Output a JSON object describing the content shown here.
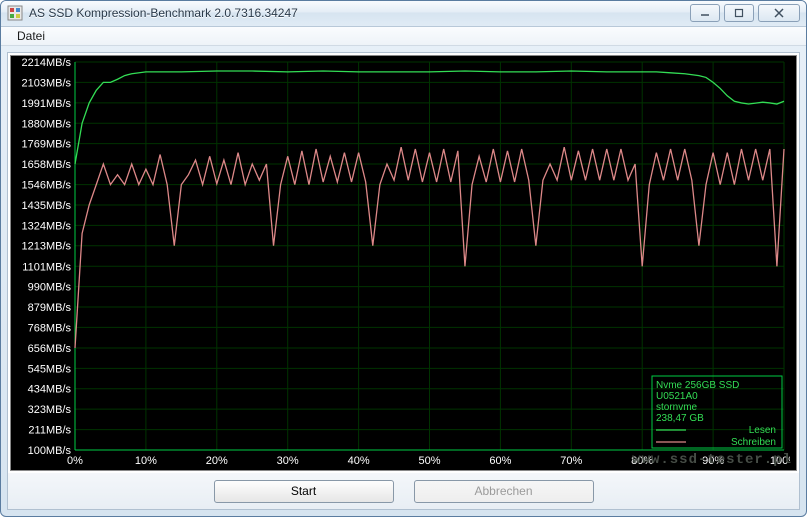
{
  "window": {
    "title": "AS SSD Kompression-Benchmark 2.0.7316.34247"
  },
  "menu": {
    "file": "Datei"
  },
  "buttons": {
    "start": "Start",
    "cancel": "Abbrechen"
  },
  "watermark": "www.ssd-tester.pl",
  "chart": {
    "background_color": "#000000",
    "grid_color": "#003300",
    "axis_color": "#00cc44",
    "read_color": "#33dd55",
    "write_color": "#dd8888",
    "info_text_color": "#33dd55",
    "y_axis": {
      "min": 100,
      "max": 2214,
      "ticks": [
        100,
        211,
        323,
        434,
        545,
        656,
        768,
        879,
        990,
        1101,
        1213,
        1324,
        1435,
        1546,
        1658,
        1769,
        1880,
        1991,
        2103,
        2214
      ],
      "unit": "MB/s",
      "label_fontsize": 11
    },
    "x_axis": {
      "min": 0,
      "max": 100,
      "ticks": [
        0,
        10,
        20,
        30,
        40,
        50,
        60,
        70,
        80,
        90,
        100
      ],
      "unit": "%",
      "label_fontsize": 11
    },
    "info_box": {
      "lines": [
        "Nvme 256GB SSD",
        "U0521A0",
        "stornvme",
        "238,47 GB"
      ]
    },
    "legend": {
      "read": "Lesen",
      "write": "Schreiben"
    },
    "read_series": {
      "x": [
        0,
        1,
        2,
        3,
        4,
        5,
        6,
        7,
        8,
        10,
        12,
        15,
        20,
        25,
        30,
        35,
        40,
        45,
        50,
        55,
        60,
        65,
        70,
        75,
        80,
        82,
        84,
        86,
        88,
        89,
        90,
        91,
        92,
        93,
        94,
        95,
        96,
        97,
        98,
        99,
        100
      ],
      "y": [
        1658,
        1880,
        1991,
        2060,
        2103,
        2103,
        2120,
        2140,
        2150,
        2160,
        2160,
        2160,
        2165,
        2165,
        2160,
        2165,
        2160,
        2160,
        2160,
        2165,
        2160,
        2160,
        2165,
        2160,
        2160,
        2160,
        2155,
        2150,
        2140,
        2130,
        2103,
        2070,
        2030,
        2000,
        1991,
        1985,
        1990,
        1995,
        1991,
        1985,
        2000
      ]
    },
    "write_series": {
      "x": [
        0,
        1,
        2,
        3,
        4,
        5,
        6,
        7,
        8,
        9,
        10,
        11,
        12,
        13,
        14,
        15,
        16,
        17,
        18,
        19,
        20,
        21,
        22,
        23,
        24,
        25,
        26,
        27,
        28,
        29,
        30,
        31,
        32,
        33,
        34,
        35,
        36,
        37,
        38,
        39,
        40,
        41,
        42,
        43,
        44,
        45,
        46,
        47,
        48,
        49,
        50,
        51,
        52,
        53,
        54,
        55,
        56,
        57,
        58,
        59,
        60,
        61,
        62,
        63,
        64,
        65,
        66,
        67,
        68,
        69,
        70,
        71,
        72,
        73,
        74,
        75,
        76,
        77,
        78,
        79,
        80,
        81,
        82,
        83,
        84,
        85,
        86,
        87,
        88,
        89,
        90,
        91,
        92,
        93,
        94,
        95,
        96,
        97,
        98,
        99,
        100
      ],
      "y": [
        656,
        1280,
        1435,
        1546,
        1658,
        1546,
        1600,
        1546,
        1658,
        1546,
        1630,
        1546,
        1710,
        1546,
        1213,
        1546,
        1600,
        1680,
        1546,
        1700,
        1550,
        1680,
        1546,
        1720,
        1546,
        1658,
        1570,
        1658,
        1213,
        1546,
        1700,
        1546,
        1730,
        1546,
        1740,
        1560,
        1700,
        1560,
        1720,
        1560,
        1720,
        1560,
        1213,
        1546,
        1658,
        1570,
        1750,
        1570,
        1740,
        1560,
        1720,
        1560,
        1740,
        1560,
        1730,
        1101,
        1546,
        1700,
        1560,
        1740,
        1560,
        1730,
        1560,
        1740,
        1570,
        1213,
        1570,
        1658,
        1570,
        1750,
        1570,
        1730,
        1570,
        1740,
        1570,
        1740,
        1570,
        1740,
        1570,
        1658,
        1101,
        1546,
        1720,
        1570,
        1740,
        1570,
        1740,
        1570,
        1213,
        1546,
        1720,
        1546,
        1720,
        1546,
        1740,
        1570,
        1740,
        1570,
        1740,
        1101,
        1740
      ]
    }
  }
}
